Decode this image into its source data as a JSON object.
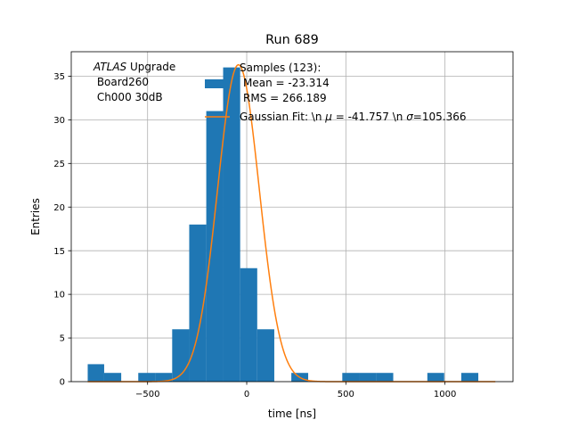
{
  "chart_data": {
    "type": "bar",
    "title": "Run 689",
    "xlabel": "time [ns]",
    "ylabel": "Entries",
    "xlim": [
      -885,
      1343
    ],
    "ylim": [
      0,
      37.8
    ],
    "grid": true,
    "x_ticks": [
      -500,
      0,
      500,
      1000
    ],
    "x_tick_labels": [
      "−500",
      "0",
      "500",
      "1000"
    ],
    "y_ticks": [
      0,
      5,
      10,
      15,
      20,
      25,
      30,
      35
    ],
    "y_tick_labels": [
      "0",
      "5",
      "10",
      "15",
      "20",
      "25",
      "30",
      "35"
    ],
    "bin_edges": [
      -802,
      -719,
      -633,
      -547,
      -461,
      -376,
      -290,
      -204,
      -119,
      -33,
      53,
      139,
      225,
      310,
      396,
      482,
      568,
      653,
      739,
      825,
      911,
      996,
      1082,
      1168,
      1254
    ],
    "counts": [
      2,
      1,
      0,
      1,
      1,
      6,
      18,
      31,
      36,
      13,
      6,
      0,
      1,
      0,
      0,
      1,
      1,
      1,
      0,
      0,
      1,
      0,
      1,
      0
    ],
    "bar_color": "#1f77b4",
    "fit": {
      "mu": -41.757,
      "sigma": 105.366,
      "amplitude": 36.3,
      "color": "#ff7f0e"
    },
    "annotation": {
      "italic": "ATLAS",
      "line1_rest": " Upgrade",
      "line2": " Board260",
      "line3": " Ch000 30dB"
    },
    "legend": {
      "position": "upper-center",
      "hist_label": [
        "Samples (123):",
        "Mean = -23.314",
        "RMS = 266.189"
      ],
      "fit_prefix": "Gaussian Fit: \\n ",
      "fit_mu_symbol": "μ",
      "fit_mid": " = -41.757 \\n ",
      "fit_sigma_symbol": "σ",
      "fit_suffix": "=105.366"
    }
  }
}
